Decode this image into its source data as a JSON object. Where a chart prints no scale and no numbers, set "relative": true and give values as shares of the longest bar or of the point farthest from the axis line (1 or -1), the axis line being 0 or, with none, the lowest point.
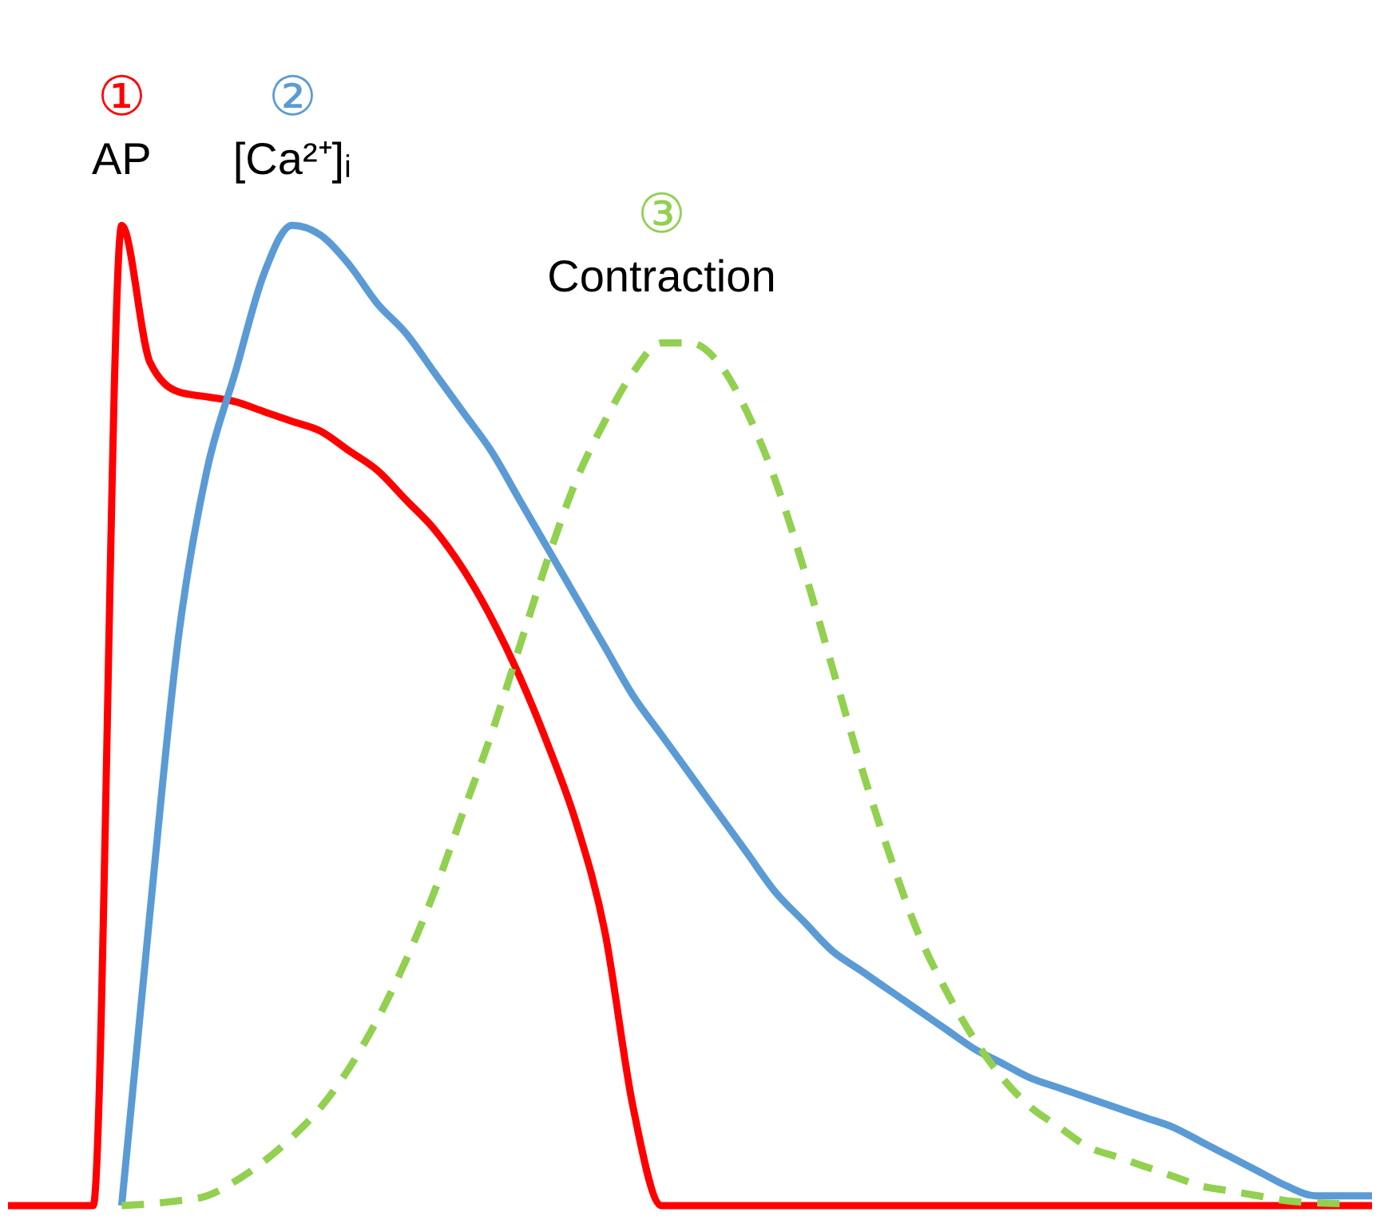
{
  "chart_data": {
    "type": "line",
    "relative": true,
    "grid": false,
    "categories": [
      null,
      null,
      null,
      null,
      null,
      null,
      null,
      null,
      null,
      null,
      null,
      null,
      null,
      null,
      null,
      null,
      null,
      null,
      null,
      null,
      null,
      null,
      null,
      null,
      null,
      null,
      null,
      null,
      null,
      null,
      null,
      null,
      null,
      null,
      null,
      null,
      null,
      null,
      null,
      null,
      null,
      null,
      null,
      null,
      null,
      null,
      null,
      null,
      null
    ],
    "annotations": [
      "①",
      "②",
      "③"
    ],
    "series": [
      {
        "name": "AP",
        "color": "#ff0000",
        "line_style": "solid",
        "values": [
          0,
          0,
          0,
          0,
          1.0,
          0.86,
          0.83,
          0.825,
          0.82,
          0.81,
          0.8,
          0.79,
          0.77,
          0.75,
          0.72,
          0.69,
          0.65,
          0.6,
          0.54,
          0.47,
          0.39,
          0.28,
          0.1,
          0,
          0,
          0,
          0,
          0,
          0,
          0,
          0,
          0,
          0,
          0,
          0,
          0,
          0,
          0,
          0,
          0,
          0,
          0,
          0,
          0,
          0,
          0,
          0,
          0,
          0
        ]
      },
      {
        "name": "[Ca²⁺]ᵢ",
        "color": "#5b9bd5",
        "line_style": "solid",
        "values": [
          null,
          null,
          null,
          null,
          0,
          0.3,
          0.58,
          0.75,
          0.85,
          0.95,
          1.0,
          0.99,
          0.96,
          0.92,
          0.89,
          0.85,
          0.81,
          0.77,
          0.72,
          0.67,
          0.62,
          0.57,
          0.52,
          0.48,
          0.44,
          0.4,
          0.36,
          0.32,
          0.29,
          0.26,
          0.24,
          0.22,
          0.2,
          0.18,
          0.16,
          0.145,
          0.13,
          0.12,
          0.11,
          0.1,
          0.09,
          0.08,
          0.065,
          0.05,
          0.035,
          0.02,
          0.01,
          0.01,
          0.01
        ]
      },
      {
        "name": "Contraction",
        "color": "#92d050",
        "line_style": "dashed",
        "values": [
          null,
          null,
          null,
          null,
          0,
          0.002,
          0.005,
          0.01,
          0.025,
          0.045,
          0.07,
          0.1,
          0.14,
          0.19,
          0.25,
          0.32,
          0.4,
          0.48,
          0.57,
          0.66,
          0.74,
          0.8,
          0.85,
          0.88,
          0.88,
          0.86,
          0.81,
          0.74,
          0.65,
          0.55,
          0.45,
          0.36,
          0.28,
          0.22,
          0.17,
          0.13,
          0.1,
          0.08,
          0.06,
          0.05,
          0.04,
          0.03,
          0.02,
          0.015,
          0.01,
          0.005,
          0.003,
          0.002,
          null
        ]
      }
    ]
  }
}
